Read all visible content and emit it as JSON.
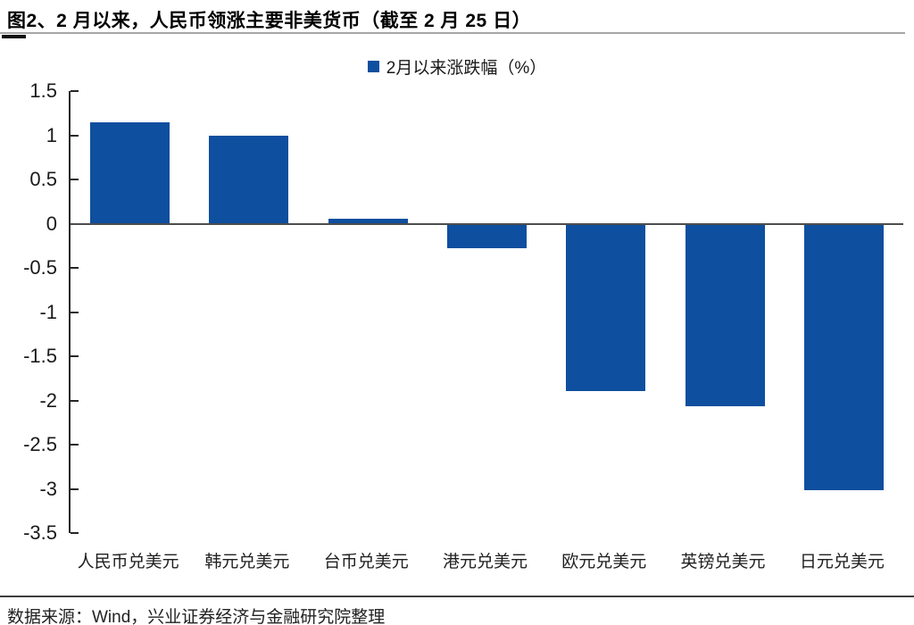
{
  "header": {
    "title": "图2、2 月以来，人民币领涨主要非美货币（截至 2 月 25 日）"
  },
  "chart_data": {
    "type": "bar",
    "title": "图2、2 月以来，人民币领涨主要非美货币（截至 2 月 25 日）",
    "legend": "2月以来涨跌幅（%）",
    "legend_position": "top-center",
    "categories": [
      "人民币兑美元",
      "韩元兑美元",
      "台币兑美元",
      "港元兑美元",
      "欧元兑美元",
      "英镑兑美元",
      "日元兑美元"
    ],
    "values": [
      1.15,
      1.0,
      0.06,
      -0.27,
      -1.88,
      -2.06,
      -3.01
    ],
    "xlabel": "",
    "ylabel": "",
    "ylim": [
      -3.5,
      1.5
    ],
    "ytick_step": 0.5,
    "ytick_labels": [
      "1.5",
      "1",
      "0.5",
      "0",
      "-0.5",
      "-1",
      "-1.5",
      "-2",
      "-2.5",
      "-3",
      "-3.5"
    ],
    "grid": false,
    "bar_color": "#0E4F9F",
    "axis_color": "#262626",
    "zero_line_color": "#4d4d4d"
  },
  "footer": {
    "source": "数据来源：Wind，兴业证券经济与金融研究院整理"
  }
}
